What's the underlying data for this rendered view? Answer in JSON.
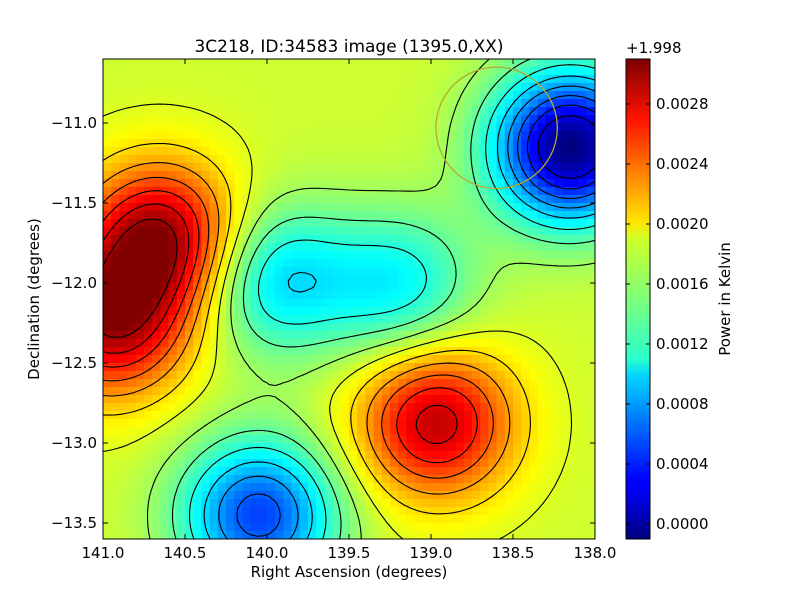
{
  "chart_data": {
    "type": "heatmap",
    "title": "3C218, ID:34583 image (1395.0,XX)",
    "xlabel": "Right Ascension (degrees)",
    "ylabel": "Declination (degrees)",
    "xlim": [
      141.0,
      138.0
    ],
    "ylim": [
      -13.6,
      -10.6
    ],
    "x_ticks": [
      "141.0",
      "140.5",
      "140.0",
      "139.5",
      "139.0",
      "138.5",
      "138.0"
    ],
    "x_tick_values": [
      141.0,
      140.5,
      140.0,
      139.5,
      139.0,
      138.5,
      138.0
    ],
    "y_ticks": [
      "−11.0",
      "−11.5",
      "−12.0",
      "−12.5",
      "−13.0",
      "−13.5"
    ],
    "y_tick_values": [
      -11.0,
      -11.5,
      -12.0,
      -12.5,
      -13.0,
      -13.5
    ],
    "colorbar": {
      "label": "Power in Kelvin",
      "offset_text": "+1.998",
      "range": [
        -0.0001,
        0.0031
      ],
      "tick_labels": [
        "0.0000",
        "0.0004",
        "0.0008",
        "0.0012",
        "0.0016",
        "0.0020",
        "0.0024",
        "0.0028"
      ],
      "tick_values": [
        0.0,
        0.0004,
        0.0008,
        0.0012,
        0.0016,
        0.002,
        0.0024,
        0.0028
      ],
      "colormap": "jet"
    },
    "features": [
      {
        "kind": "maximum",
        "ra": 140.65,
        "dec": -11.72,
        "value": 0.003
      },
      {
        "kind": "maximum",
        "ra": 140.95,
        "dec": -12.25,
        "value": 0.0029
      },
      {
        "kind": "maximum",
        "ra": 138.97,
        "dec": -12.87,
        "value": 0.0029
      },
      {
        "kind": "minimum",
        "ra": 138.15,
        "dec": -11.15,
        "value": -0.0001
      },
      {
        "kind": "minimum",
        "ra": 140.05,
        "dec": -13.45,
        "value": 0.0005
      },
      {
        "kind": "minimum",
        "ra": 139.95,
        "dec": -11.98,
        "value": 0.001
      },
      {
        "kind": "minimum",
        "ra": 139.2,
        "dec": -12.02,
        "value": 0.0011
      }
    ],
    "circle": {
      "ra": 138.6,
      "dec": -11.03,
      "radius_deg": 0.37,
      "color": "#b5a832"
    }
  }
}
